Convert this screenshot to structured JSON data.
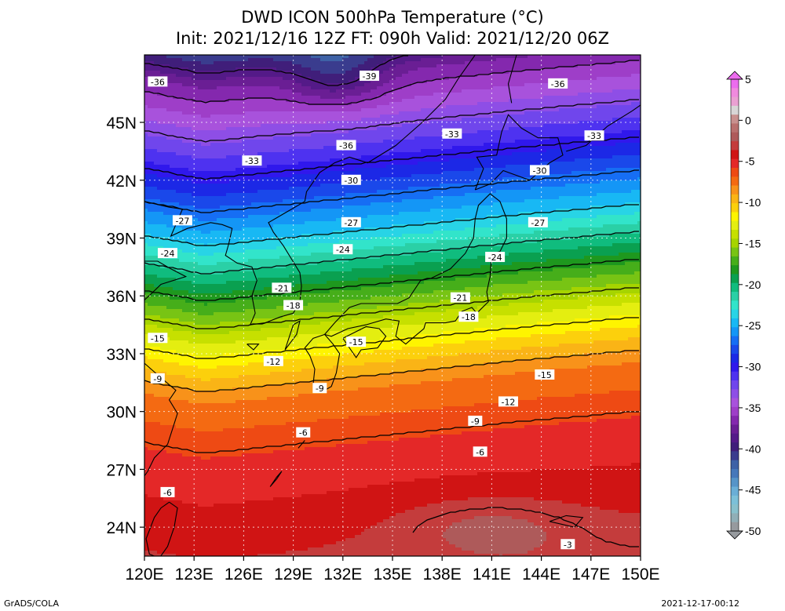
{
  "header": {
    "title_line1": "DWD ICON 500hPa Temperature (°C)",
    "title_line2": "Init: 2021/12/16 12Z  FT: 090h  Valid: 2021/12/20 06Z"
  },
  "axes": {
    "lon_labels": [
      "120E",
      "123E",
      "126E",
      "129E",
      "132E",
      "135E",
      "138E",
      "141E",
      "144E",
      "147E",
      "150E"
    ],
    "lat_labels": [
      "24N",
      "27N",
      "30N",
      "33N",
      "36N",
      "39N",
      "42N",
      "45N"
    ],
    "lon_range": [
      120,
      150
    ],
    "lat_range": [
      22.5,
      48.5
    ],
    "grid": "dotted"
  },
  "colorbar": {
    "labels": [
      "5",
      "0",
      "-5",
      "-10",
      "-15",
      "-20",
      "-25",
      "-30",
      "-35",
      "-40",
      "-45",
      "-50"
    ],
    "range": [
      -50,
      5
    ],
    "colors": [
      "#ec6cee",
      "#f08ade",
      "#eaa0d2",
      "#d8d6d6",
      "#c8908e",
      "#b9706e",
      "#ae5a5a",
      "#c43c3c",
      "#d01414",
      "#e42828",
      "#ee4a14",
      "#f46a12",
      "#f8921a",
      "#fab416",
      "#fcd00c",
      "#fef400",
      "#e4ee10",
      "#c6e000",
      "#a6d400",
      "#78c414",
      "#46ae1a",
      "#1e981e",
      "#0aa050",
      "#10bc7e",
      "#2ad0a6",
      "#32e4ca",
      "#28d4e6",
      "#18b8f4",
      "#1496f6",
      "#166ef4",
      "#1a48ea",
      "#1c28e6",
      "#3018ec",
      "#4e32f0",
      "#7046ec",
      "#8e4ee6",
      "#a852dc",
      "#9e3ec8",
      "#8428ae",
      "#6a1e94",
      "#541a88",
      "#401e7a",
      "#3a3c8e",
      "#3e62a6",
      "#4678ba",
      "#5694c8",
      "#6aaed6",
      "#7cc0d8",
      "#88c0cc",
      "#90aeb6",
      "#969a9e"
    ]
  },
  "contours": [
    {
      "label": "-39",
      "value": -39
    },
    {
      "label": "-36",
      "value": -36
    },
    {
      "label": "-33",
      "value": -33
    },
    {
      "label": "-30",
      "value": -30
    },
    {
      "label": "-27",
      "value": -27
    },
    {
      "label": "-24",
      "value": -24
    },
    {
      "label": "-21",
      "value": -21
    },
    {
      "label": "-18",
      "value": -18
    },
    {
      "label": "-15",
      "value": -15
    },
    {
      "label": "-12",
      "value": -12
    },
    {
      "label": "-9",
      "value": -9
    },
    {
      "label": "-6",
      "value": -6
    },
    {
      "label": "-3",
      "value": -3
    }
  ],
  "footer": {
    "credit": "GrADS/COLA",
    "timestamp": "2021-12-17-00:12"
  }
}
